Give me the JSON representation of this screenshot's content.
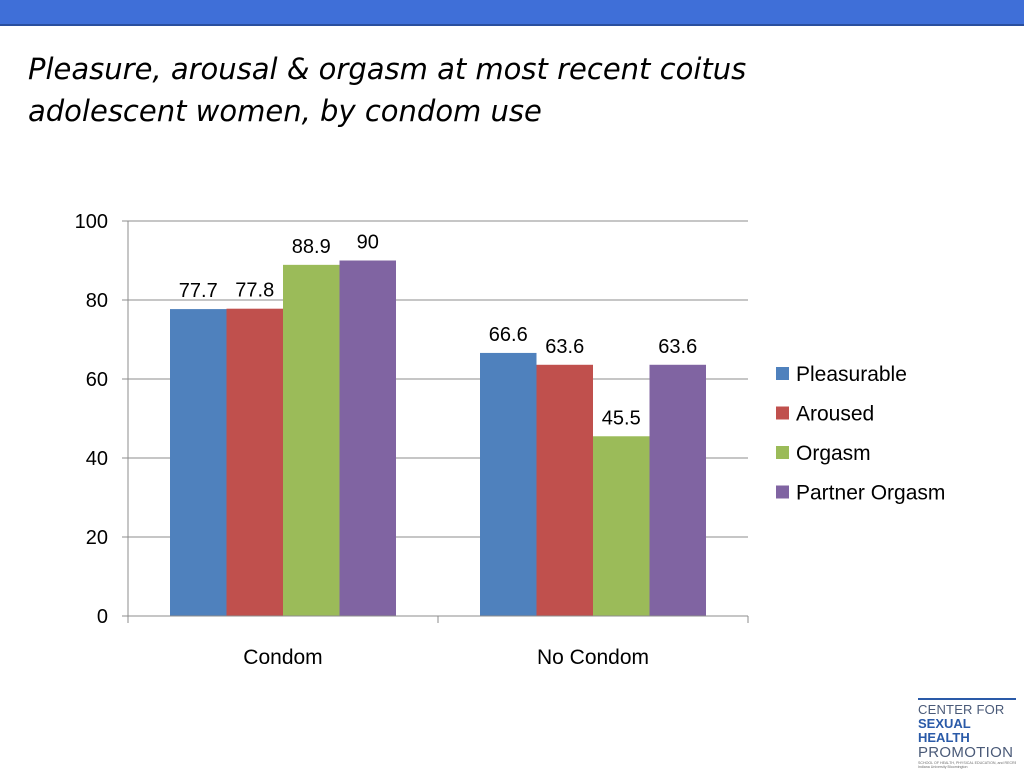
{
  "slide": {
    "title_line1": "Pleasure, arousal & orgasm at most recent coitus",
    "title_line2": "adolescent women, by condom use",
    "colors": {
      "header_bar": "#3f6fd8"
    }
  },
  "logo": {
    "line1": "CENTER FOR",
    "line2": "SEXUAL HEALTH",
    "line3": "PROMOTION",
    "sub1": "SCHOOL OF HEALTH, PHYSICAL EDUCATION, and RECREATION",
    "sub2": "Indiana University Bloomington"
  },
  "chart_data": {
    "type": "bar",
    "title": "",
    "xlabel": "",
    "ylabel": "",
    "categories": [
      "Condom",
      "No Condom"
    ],
    "ylim": [
      0,
      100
    ],
    "yticks": [
      0,
      20,
      40,
      60,
      80,
      100
    ],
    "grid": true,
    "legend_position": "right",
    "series": [
      {
        "name": "Pleasurable",
        "color": "#4f81bd",
        "values": [
          77.7,
          66.6
        ],
        "labels": [
          "77.7",
          "66.6"
        ]
      },
      {
        "name": "Aroused",
        "color": "#c0504d",
        "values": [
          77.8,
          63.6
        ],
        "labels": [
          "77.8",
          "63.6"
        ]
      },
      {
        "name": "Orgasm",
        "color": "#9bbb59",
        "values": [
          88.9,
          45.5
        ],
        "labels": [
          "88.9",
          "45.5"
        ]
      },
      {
        "name": "Partner Orgasm",
        "color": "#8064a2",
        "values": [
          90,
          63.6
        ],
        "labels": [
          "90",
          "63.6"
        ]
      }
    ]
  }
}
